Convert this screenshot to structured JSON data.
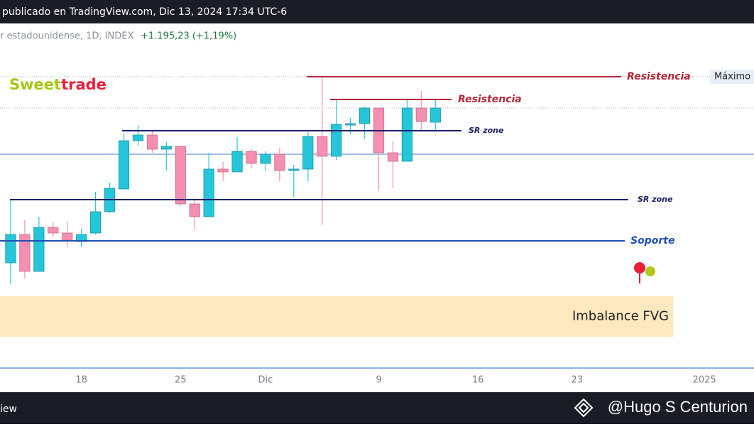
{
  "header": {
    "published": "publicado en TradingView.com, Dic 13, 2024 17:34 UTC-6",
    "symbol": "r estadounidense, 1D, INDEX",
    "change": "+1.195,23 (+1,19%)"
  },
  "logo": {
    "part1": "Sweet",
    "part2": "trade"
  },
  "footer": {
    "left": "iew",
    "watermark": "@Hugo S Centurion"
  },
  "chart_data": {
    "type": "candlestick",
    "x": [
      0,
      1,
      2,
      3,
      4,
      5,
      6,
      7,
      8,
      9,
      10,
      11,
      12,
      13,
      14,
      15,
      16,
      17,
      18,
      19,
      20,
      21,
      22,
      23,
      24,
      25,
      26,
      27,
      28,
      29,
      30
    ],
    "open": [
      180,
      220,
      168,
      230,
      222,
      210,
      222,
      252,
      284,
      352,
      360,
      340,
      344,
      263,
      245,
      312,
      308,
      337,
      320,
      333,
      310,
      312,
      358,
      330,
      374,
      376,
      398,
      335,
      323,
      398,
      378
    ],
    "high": [
      268,
      240,
      245,
      237,
      238,
      228,
      280,
      293,
      362,
      374,
      365,
      350,
      344,
      270,
      335,
      322,
      357,
      340,
      337,
      342,
      318,
      364,
      442,
      410,
      384,
      400,
      398,
      352,
      410,
      422,
      410
    ],
    "low": [
      150,
      158,
      168,
      217,
      202,
      202,
      220,
      250,
      284,
      345,
      335,
      310,
      260,
      227,
      245,
      295,
      308,
      314,
      310,
      295,
      273,
      295,
      233,
      325,
      362,
      355,
      282,
      285,
      323,
      367,
      367
    ],
    "close": [
      220,
      168,
      230,
      222,
      212,
      220,
      252,
      285,
      352,
      360,
      340,
      344,
      263,
      245,
      312,
      308,
      337,
      320,
      333,
      310,
      312,
      358,
      330,
      375,
      376,
      398,
      335,
      323,
      398,
      379,
      398
    ],
    "up_color": "#26c6da",
    "down_color": "#f48fb1",
    "xlim": [
      -0.75,
      52.5
    ],
    "xticks": [
      {
        "value": 5,
        "label": "18"
      },
      {
        "value": 12,
        "label": "25"
      },
      {
        "value": 18,
        "label": "Dic"
      },
      {
        "value": 26,
        "label": "9"
      },
      {
        "value": 33,
        "label": "16"
      },
      {
        "value": 40,
        "label": "23"
      },
      {
        "value": 49,
        "label": "2025"
      }
    ],
    "ylim": [
      0,
      516
    ],
    "levels": [
      {
        "label": "Resistencia",
        "value": 442,
        "color": "#b5283a"
      },
      {
        "label": "Resistencia",
        "value": 410,
        "color": "#b5283a"
      },
      {
        "label": "SR zone",
        "value": 366,
        "color": "#1c1f6b"
      },
      {
        "label": "SR zone",
        "value": 269,
        "color": "#1c1f6b"
      },
      {
        "label": "Soporte",
        "value": 211,
        "color": "#1f4fb5"
      }
    ],
    "lines": [
      {
        "value": 333,
        "color": "#4a7fd0"
      },
      {
        "value": 442,
        "color": "#b0b0b0"
      },
      {
        "value": 398,
        "color": "#b0b0b0"
      }
    ],
    "high_label": {
      "label": "Máximo",
      "value": 442
    },
    "zone": {
      "label": "Imbalance FVG",
      "low": 76,
      "high": 133,
      "color": "#fde8bf"
    }
  }
}
